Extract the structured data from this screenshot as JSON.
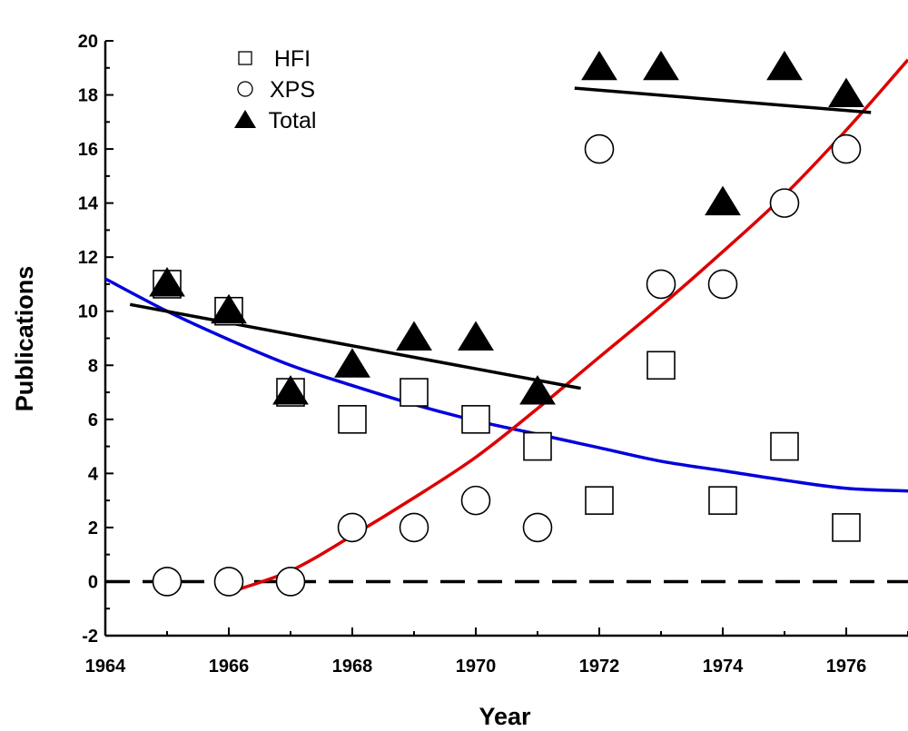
{
  "chart_data": {
    "type": "scatter",
    "xlabel": "Year",
    "ylabel": "Publications",
    "xlim": [
      1964,
      1977
    ],
    "ylim": [
      -2,
      20
    ],
    "x_ticks": [
      1964,
      1966,
      1968,
      1970,
      1972,
      1974,
      1976
    ],
    "y_ticks": [
      -2,
      0,
      2,
      4,
      6,
      8,
      10,
      12,
      14,
      16,
      18,
      20
    ],
    "legend_position": "top-left",
    "series": [
      {
        "name": "HFI",
        "marker": "square-open",
        "color": "#000000",
        "x": [
          1965,
          1966,
          1967,
          1968,
          1969,
          1970,
          1971,
          1972,
          1973,
          1974,
          1975,
          1976
        ],
        "y": [
          11,
          10,
          7,
          6,
          7,
          6,
          5,
          3,
          8,
          3,
          5,
          2
        ]
      },
      {
        "name": "XPS",
        "marker": "circle-open",
        "color": "#000000",
        "x": [
          1965,
          1966,
          1967,
          1968,
          1969,
          1970,
          1971,
          1972,
          1973,
          1974,
          1975,
          1976
        ],
        "y": [
          0,
          0,
          0,
          2,
          2,
          3,
          2,
          16,
          11,
          11,
          14,
          16
        ]
      },
      {
        "name": "Total",
        "marker": "triangle-filled",
        "color": "#000000",
        "x": [
          1965,
          1966,
          1967,
          1968,
          1969,
          1970,
          1971,
          1972,
          1973,
          1974,
          1975,
          1976
        ],
        "y": [
          11,
          10,
          7,
          8,
          9,
          9,
          7,
          19,
          19,
          14,
          19,
          18
        ]
      }
    ],
    "fit_lines": [
      {
        "color": "#0000dd",
        "form": "exponential-decay",
        "x": [
          1964,
          1965,
          1966,
          1967,
          1968,
          1969,
          1970,
          1971,
          1972,
          1973,
          1974,
          1975,
          1976,
          1977
        ],
        "y": [
          11.2,
          10.0,
          8.95,
          8.0,
          7.25,
          6.55,
          5.95,
          5.45,
          4.95,
          4.45,
          4.1,
          3.75,
          3.45,
          3.35
        ]
      },
      {
        "color": "#dd0000",
        "form": "polynomial",
        "x": [
          1966,
          1967,
          1968,
          1969,
          1970,
          1971,
          1972,
          1973,
          1974,
          1975,
          1976,
          1977
        ],
        "y": [
          -0.4,
          0.4,
          1.7,
          3.1,
          4.6,
          6.4,
          8.3,
          10.2,
          12.2,
          14.3,
          16.7,
          19.3
        ]
      },
      {
        "color": "#000000",
        "form": "linear",
        "x": [
          1964.4,
          1971.7
        ],
        "y": [
          10.25,
          7.15
        ]
      },
      {
        "color": "#000000",
        "form": "linear",
        "x": [
          1971.6,
          1976.4
        ],
        "y": [
          18.25,
          17.35
        ]
      }
    ],
    "reference_line": {
      "y": 0,
      "style": "dashed",
      "color": "#000000"
    }
  }
}
